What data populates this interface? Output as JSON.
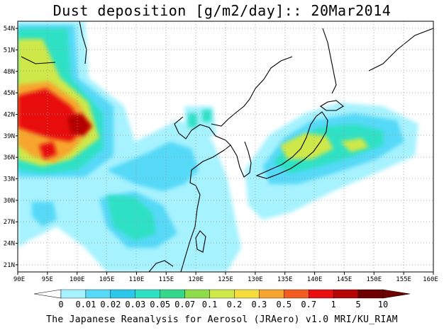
{
  "title": "Dust deposition [g/m2/day]:: 20Mar2014",
  "footer": "The Japanese Reanalysis for Aerosol (JRAero) v1.0 MRI/KU_RIAM",
  "map": {
    "lon_range": [
      90,
      160
    ],
    "lat_range": [
      20,
      55
    ],
    "lon_ticks": [
      "90E",
      "95E",
      "100E",
      "105E",
      "110E",
      "115E",
      "120E",
      "125E",
      "130E",
      "135E",
      "140E",
      "145E",
      "150E",
      "155E",
      "160E"
    ],
    "lat_ticks": [
      "21N",
      "24N",
      "27N",
      "30N",
      "33N",
      "36N",
      "39N",
      "42N",
      "45N",
      "48N",
      "51N",
      "54N"
    ],
    "grid": "dotted"
  },
  "colorbar": {
    "labels": [
      "0",
      "0.01",
      "0.02",
      "0.03",
      "0.05",
      "0.07",
      "0.1",
      "0.2",
      "0.3",
      "0.5",
      "0.7",
      "1",
      "5",
      "10"
    ],
    "colors": [
      "#ffffff",
      "#a6f2ff",
      "#55d9f7",
      "#2bc8ec",
      "#2ee1c4",
      "#35d88b",
      "#8fdc4b",
      "#cfe84a",
      "#f4dc3a",
      "#f7a52e",
      "#f25c20",
      "#e81010",
      "#b50505",
      "#6e0000"
    ]
  }
}
